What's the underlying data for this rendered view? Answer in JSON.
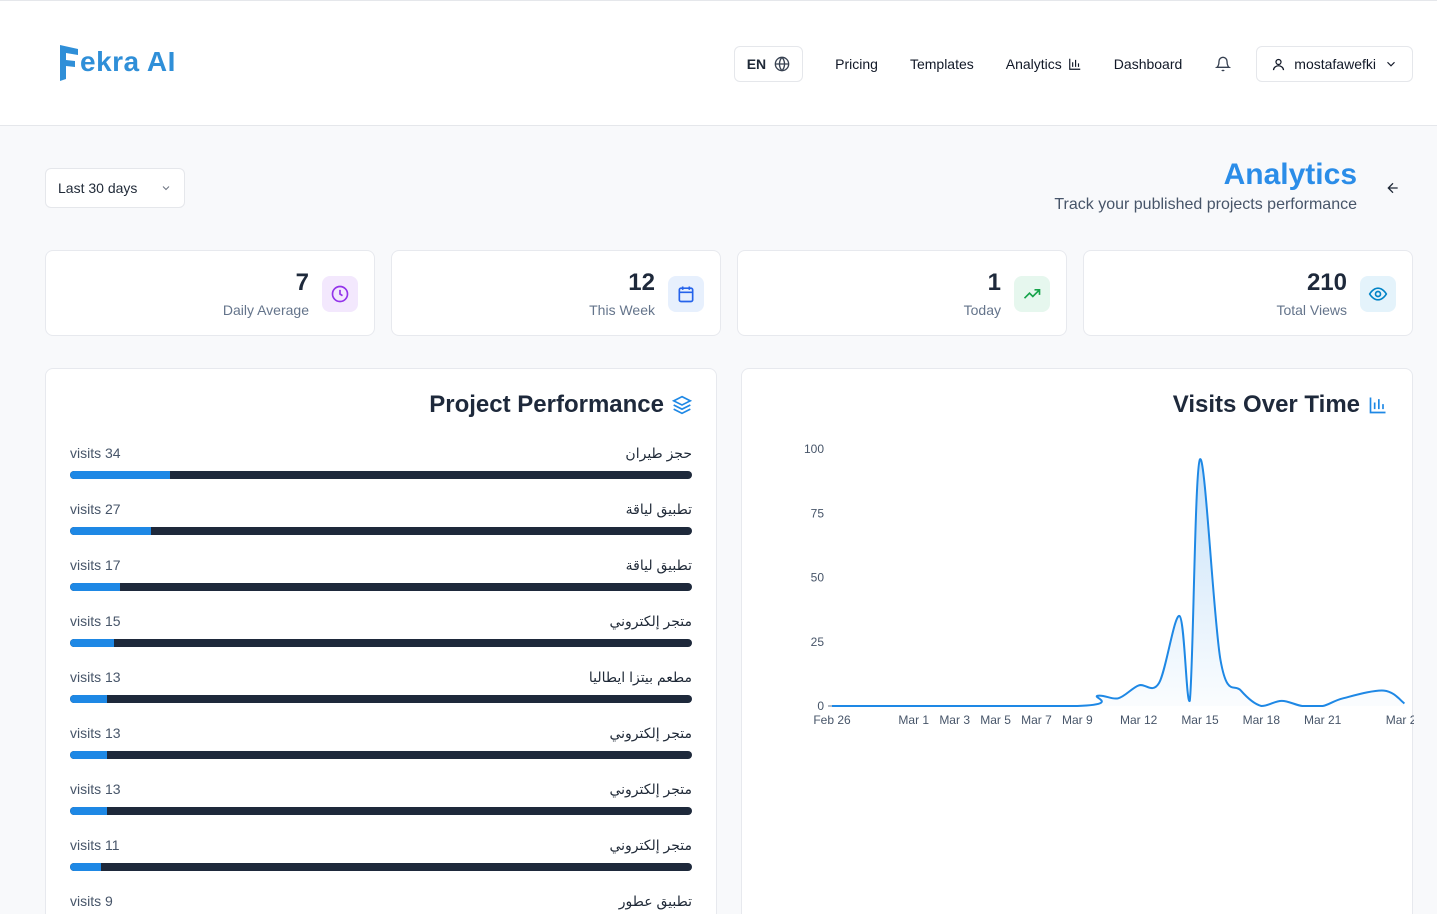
{
  "brand": {
    "name": "ekra AI",
    "letter": "F",
    "color": "#2f8fd8"
  },
  "nav": {
    "language": "EN",
    "links": [
      "Pricing",
      "Templates",
      "Analytics",
      "Dashboard"
    ],
    "user": "mostafawefki"
  },
  "filter": {
    "range": "Last 30 days"
  },
  "page": {
    "title": "Analytics",
    "subtitle": "Track your published projects performance"
  },
  "stats": [
    {
      "value": "7",
      "label": "Daily Average",
      "icon": "clock-icon"
    },
    {
      "value": "12",
      "label": "This Week",
      "icon": "calendar-icon"
    },
    {
      "value": "1",
      "label": "Today",
      "icon": "trending-up-icon"
    },
    {
      "value": "210",
      "label": "Total Views",
      "icon": "eye-icon"
    }
  ],
  "projects": {
    "title": "Project Performance",
    "items": [
      {
        "visits": "visits 34",
        "name": "حجز طيران",
        "share": 0.16
      },
      {
        "visits": "visits 27",
        "name": "تطبيق لياقة",
        "share": 0.13
      },
      {
        "visits": "visits 17",
        "name": "تطبيق لياقة",
        "share": 0.08
      },
      {
        "visits": "visits 15",
        "name": "متجر إلكتروني",
        "share": 0.07
      },
      {
        "visits": "visits 13",
        "name": "مطعم بيتزا ايطاليا",
        "share": 0.06
      },
      {
        "visits": "visits 13",
        "name": "متجر إلكتروني",
        "share": 0.06
      },
      {
        "visits": "visits 13",
        "name": "متجر إلكتروني",
        "share": 0.06
      },
      {
        "visits": "visits 11",
        "name": "متجر إلكتروني",
        "share": 0.05
      },
      {
        "visits": "visits 9",
        "name": "تطبيق عطور",
        "share": 0.04
      }
    ]
  },
  "chart_data": {
    "type": "area",
    "title": "Visits Over Time",
    "x": [
      "Feb 26",
      "Mar 1",
      "Mar 3",
      "Mar 5",
      "Mar 7",
      "Mar 9",
      "Mar 12",
      "Mar 15",
      "Mar 18",
      "Mar 21",
      "Mar 25"
    ],
    "x_ticks": [
      "Feb 26",
      "Mar 1",
      "Mar 3",
      "Mar 5",
      "Mar 7",
      "Mar 9",
      "Mar 12",
      "Mar 15",
      "Mar 18",
      "Mar 21",
      "Mar 25"
    ],
    "series": [
      {
        "values": [
          0,
          0,
          0,
          0,
          0,
          4,
          8,
          0,
          18,
          1,
          5
        ],
        "line_color": "#1e88e5"
      }
    ],
    "ylim": [
      0,
      100
    ],
    "y_ticks": [
      0,
      25,
      50,
      75,
      100
    ],
    "grid": false
  },
  "chart_points": [
    {
      "x": "Feb 26",
      "y": 0
    },
    {
      "x": "Mar 9",
      "y": 0
    },
    {
      "x": "Mar 10",
      "y": 4
    },
    {
      "x": "Mar 11",
      "y": 3
    },
    {
      "x": "Mar 12",
      "y": 8
    },
    {
      "x": "Mar 13",
      "y": 9
    },
    {
      "x": "Mar 14",
      "y": 35
    },
    {
      "x": "Mar 14.5",
      "y": 2
    },
    {
      "x": "Mar 15",
      "y": 96
    },
    {
      "x": "Mar 16",
      "y": 18
    },
    {
      "x": "Mar 17",
      "y": 6
    },
    {
      "x": "Mar 18",
      "y": 0
    },
    {
      "x": "Mar 19",
      "y": 2
    },
    {
      "x": "Mar 20",
      "y": 0
    },
    {
      "x": "Mar 21",
      "y": 0
    },
    {
      "x": "Mar 22",
      "y": 3
    },
    {
      "x": "Mar 24",
      "y": 6
    },
    {
      "x": "Mar 25",
      "y": 1
    }
  ]
}
